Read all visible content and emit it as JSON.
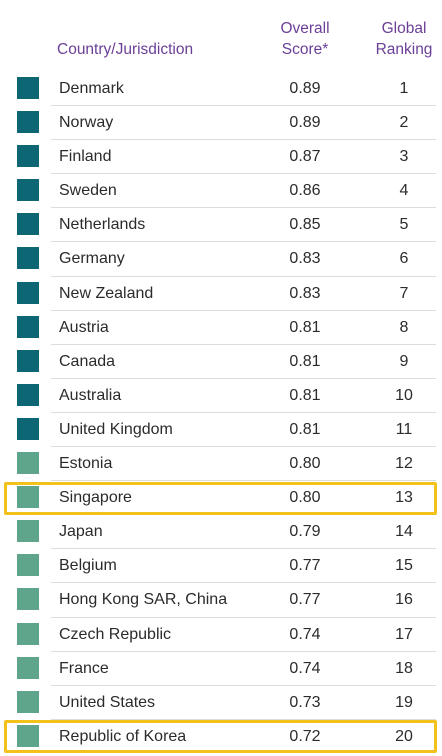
{
  "header": {
    "country": "Country/Jurisdiction",
    "score_line1": "Overall",
    "score_line2": "Score*",
    "rank_line1": "Global",
    "rank_line2": "Ranking"
  },
  "colors": {
    "dark_square": "#0d6673",
    "light_square": "#5ea58c",
    "header_text": "#6b3f97",
    "highlight_border": "#f2c21b"
  },
  "rows": [
    {
      "country": "Denmark",
      "score": "0.89",
      "rank": "1",
      "tone": "dark",
      "highlight": false
    },
    {
      "country": "Norway",
      "score": "0.89",
      "rank": "2",
      "tone": "dark",
      "highlight": false
    },
    {
      "country": "Finland",
      "score": "0.87",
      "rank": "3",
      "tone": "dark",
      "highlight": false
    },
    {
      "country": "Sweden",
      "score": "0.86",
      "rank": "4",
      "tone": "dark",
      "highlight": false
    },
    {
      "country": "Netherlands",
      "score": "0.85",
      "rank": "5",
      "tone": "dark",
      "highlight": false
    },
    {
      "country": "Germany",
      "score": "0.83",
      "rank": "6",
      "tone": "dark",
      "highlight": false
    },
    {
      "country": "New Zealand",
      "score": "0.83",
      "rank": "7",
      "tone": "dark",
      "highlight": false
    },
    {
      "country": "Austria",
      "score": "0.81",
      "rank": "8",
      "tone": "dark",
      "highlight": false
    },
    {
      "country": "Canada",
      "score": "0.81",
      "rank": "9",
      "tone": "dark",
      "highlight": false
    },
    {
      "country": "Australia",
      "score": "0.81",
      "rank": "10",
      "tone": "dark",
      "highlight": false
    },
    {
      "country": "United Kingdom",
      "score": "0.81",
      "rank": "11",
      "tone": "dark",
      "highlight": false
    },
    {
      "country": "Estonia",
      "score": "0.80",
      "rank": "12",
      "tone": "light",
      "highlight": false
    },
    {
      "country": "Singapore",
      "score": "0.80",
      "rank": "13",
      "tone": "light",
      "highlight": true
    },
    {
      "country": "Japan",
      "score": "0.79",
      "rank": "14",
      "tone": "light",
      "highlight": false
    },
    {
      "country": "Belgium",
      "score": "0.77",
      "rank": "15",
      "tone": "light",
      "highlight": false
    },
    {
      "country": "Hong Kong SAR, China",
      "score": "0.77",
      "rank": "16",
      "tone": "light",
      "highlight": false
    },
    {
      "country": "Czech Republic",
      "score": "0.74",
      "rank": "17",
      "tone": "light",
      "highlight": false
    },
    {
      "country": "France",
      "score": "0.74",
      "rank": "18",
      "tone": "light",
      "highlight": false
    },
    {
      "country": "United States",
      "score": "0.73",
      "rank": "19",
      "tone": "light",
      "highlight": false
    },
    {
      "country": "Republic of Korea",
      "score": "0.72",
      "rank": "20",
      "tone": "light",
      "highlight": true
    }
  ]
}
